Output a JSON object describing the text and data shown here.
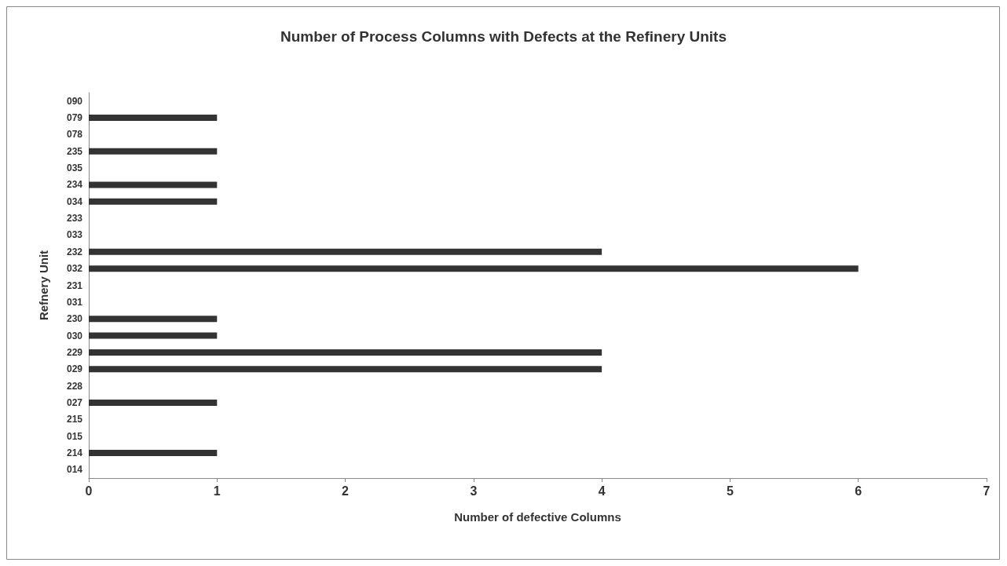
{
  "chart_data": {
    "type": "bar",
    "orientation": "horizontal",
    "title": "Number of Process Columns with Defects at the Refinery Units",
    "xlabel": "Number of defective Columns",
    "ylabel": "Refnery Unit",
    "categories": [
      "090",
      "079",
      "078",
      "235",
      "035",
      "234",
      "034",
      "233",
      "033",
      "232",
      "032",
      "231",
      "031",
      "230",
      "030",
      "229",
      "029",
      "228",
      "027",
      "215",
      "015",
      "214",
      "014"
    ],
    "values": [
      0,
      1,
      0,
      1,
      0,
      1,
      1,
      0,
      0,
      4,
      6,
      0,
      0,
      1,
      1,
      4,
      4,
      0,
      1,
      0,
      0,
      1,
      0
    ],
    "color": "#333333",
    "xlim": [
      0,
      7
    ],
    "xticks": [
      0,
      1,
      2,
      3,
      4,
      5,
      6,
      7
    ],
    "grid": false
  }
}
